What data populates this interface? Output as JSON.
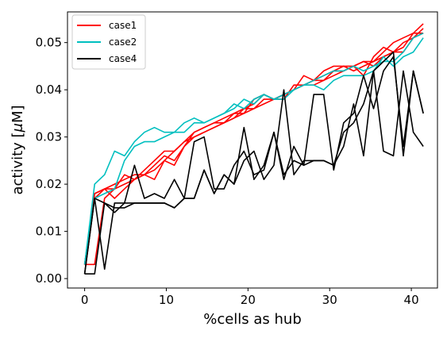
{
  "chart_data": {
    "type": "line",
    "title": "",
    "xlabel": "%cells as hub",
    "ylabel_parts": {
      "prefix": "activity [",
      "mu": "μ",
      "unit": "M]"
    },
    "xlim": [
      -2.1,
      43.2
    ],
    "ylim": [
      -0.002,
      0.0565
    ],
    "xticks": [
      0,
      10,
      20,
      30,
      40
    ],
    "xtick_labels": [
      "0",
      "10",
      "20",
      "30",
      "40"
    ],
    "yticks": [
      0.0,
      0.01,
      0.02,
      0.03,
      0.04,
      0.05
    ],
    "ytick_labels": [
      "0.00",
      "0.01",
      "0.02",
      "0.03",
      "0.04",
      "0.05"
    ],
    "grid": false,
    "legend_position": "top-left",
    "legend": [
      {
        "label": "case1",
        "color": "#ff0000"
      },
      {
        "label": "case2",
        "color": "#00bfbf"
      },
      {
        "label": "case4",
        "color": "#000000"
      }
    ],
    "x": [
      0,
      1.22,
      2.44,
      3.66,
      4.88,
      6.1,
      7.32,
      8.54,
      9.76,
      10.98,
      12.2,
      13.41,
      14.63,
      15.85,
      17.07,
      18.29,
      19.51,
      20.73,
      21.95,
      23.17,
      24.39,
      25.61,
      26.83,
      28.05,
      29.27,
      30.49,
      31.71,
      32.93,
      34.15,
      35.37,
      36.59,
      37.8,
      39.02,
      40.24,
      41.46
    ],
    "series": [
      {
        "group": "case1",
        "color": "#ff0000",
        "values": [
          0.003,
          0.018,
          0.019,
          0.02,
          0.021,
          0.022,
          0.022,
          0.024,
          0.026,
          0.025,
          0.028,
          0.03,
          0.031,
          0.032,
          0.033,
          0.034,
          0.035,
          0.036,
          0.038,
          0.038,
          0.039,
          0.04,
          0.041,
          0.041,
          0.042,
          0.043,
          0.044,
          0.045,
          0.046,
          0.046,
          0.047,
          0.048,
          0.05,
          0.051,
          0.052
        ]
      },
      {
        "group": "case1",
        "color": "#ff0000",
        "values": [
          0.003,
          0.017,
          0.019,
          0.019,
          0.02,
          0.021,
          0.023,
          0.025,
          0.027,
          0.027,
          0.029,
          0.031,
          0.032,
          0.033,
          0.033,
          0.035,
          0.036,
          0.036,
          0.037,
          0.038,
          0.039,
          0.04,
          0.041,
          0.042,
          0.042,
          0.044,
          0.044,
          0.045,
          0.046,
          0.045,
          0.047,
          0.048,
          0.049,
          0.052,
          0.054
        ]
      },
      {
        "group": "case1",
        "color": "#ff0000",
        "values": [
          0.003,
          0.003,
          0.017,
          0.019,
          0.022,
          0.021,
          0.022,
          0.021,
          0.025,
          0.024,
          0.028,
          0.031,
          0.032,
          0.033,
          0.034,
          0.035,
          0.035,
          0.038,
          0.039,
          0.038,
          0.039,
          0.04,
          0.043,
          0.042,
          0.044,
          0.045,
          0.045,
          0.045,
          0.043,
          0.047,
          0.049,
          0.048,
          0.048,
          0.051,
          0.053
        ]
      },
      {
        "group": "case1",
        "color": "#ff0000",
        "values": [
          0.003,
          0.018,
          0.019,
          0.017,
          0.019,
          0.021,
          0.022,
          0.023,
          0.025,
          0.027,
          0.029,
          0.03,
          0.031,
          0.032,
          0.033,
          0.034,
          0.036,
          0.037,
          0.039,
          0.038,
          0.038,
          0.041,
          0.041,
          0.042,
          0.043,
          0.044,
          0.045,
          0.044,
          0.045,
          0.046,
          0.048,
          0.05,
          0.051,
          0.052,
          0.052
        ]
      },
      {
        "group": "case2",
        "color": "#00bfbf",
        "values": [
          0.003,
          0.02,
          0.022,
          0.027,
          0.026,
          0.029,
          0.031,
          0.032,
          0.031,
          0.031,
          0.033,
          0.034,
          0.033,
          0.034,
          0.035,
          0.036,
          0.038,
          0.037,
          0.039,
          0.038,
          0.038,
          0.04,
          0.041,
          0.041,
          0.04,
          0.042,
          0.043,
          0.043,
          0.043,
          0.044,
          0.047,
          0.045,
          0.047,
          0.048,
          0.051
        ]
      },
      {
        "group": "case2",
        "color": "#00bfbf",
        "values": [
          0.003,
          0.017,
          0.018,
          0.019,
          0.025,
          0.028,
          0.029,
          0.029,
          0.03,
          0.031,
          0.031,
          0.033,
          0.033,
          0.034,
          0.035,
          0.037,
          0.036,
          0.038,
          0.039,
          0.038,
          0.039,
          0.04,
          0.041,
          0.042,
          0.043,
          0.044,
          0.044,
          0.045,
          0.044,
          0.045,
          0.046,
          0.046,
          0.048,
          0.051,
          0.052
        ]
      },
      {
        "group": "case4",
        "color": "#000000",
        "values": [
          0.001,
          0.001,
          0.016,
          0.015,
          0.015,
          0.016,
          0.016,
          0.016,
          0.016,
          0.015,
          0.017,
          0.017,
          0.023,
          0.018,
          0.022,
          0.02,
          0.025,
          0.027,
          0.021,
          0.024,
          0.04,
          0.022,
          0.025,
          0.025,
          0.025,
          0.024,
          0.028,
          0.037,
          0.026,
          0.044,
          0.027,
          0.026,
          0.044,
          0.031,
          0.028
        ]
      },
      {
        "group": "case4",
        "color": "#000000",
        "values": [
          0.001,
          0.017,
          0.002,
          0.016,
          0.016,
          0.016,
          0.016,
          0.016,
          0.016,
          0.015,
          0.017,
          0.017,
          0.023,
          0.018,
          0.022,
          0.02,
          0.032,
          0.021,
          0.024,
          0.031,
          0.022,
          0.025,
          0.024,
          0.039,
          0.039,
          0.023,
          0.033,
          0.035,
          0.043,
          0.036,
          0.044,
          0.047,
          0.028,
          0.044,
          0.035
        ]
      },
      {
        "group": "case4",
        "color": "#000000",
        "values": [
          0.001,
          0.017,
          0.016,
          0.014,
          0.016,
          0.024,
          0.017,
          0.018,
          0.017,
          0.021,
          0.017,
          0.029,
          0.03,
          0.019,
          0.019,
          0.024,
          0.027,
          0.022,
          0.023,
          0.031,
          0.021,
          0.028,
          0.024,
          0.025,
          0.025,
          0.024,
          0.031,
          0.033,
          0.037,
          0.044,
          0.046,
          0.048,
          0.026,
          0.044,
          0.035
        ]
      }
    ]
  }
}
